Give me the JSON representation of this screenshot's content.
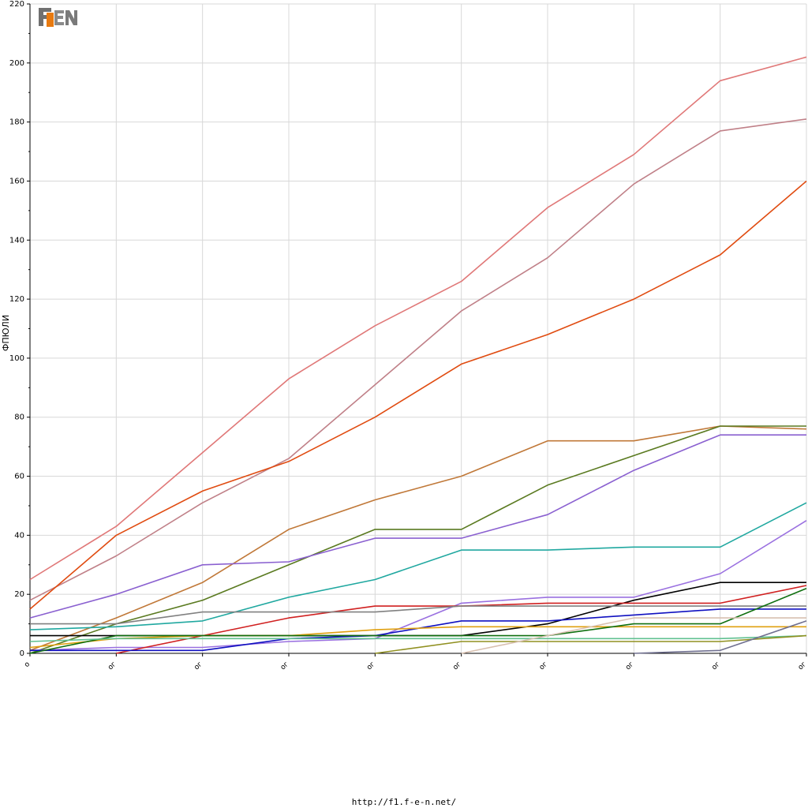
{
  "chart_data": {
    "type": "line",
    "ylabel": "ФПЮЛИ",
    "ylim": [
      0,
      220
    ],
    "yticks": [
      0,
      20,
      40,
      60,
      80,
      100,
      120,
      140,
      160,
      180,
      200,
      220
    ],
    "x": [
      0,
      1,
      2,
      3,
      4,
      5,
      6,
      7,
      8,
      9
    ],
    "xtick_labels": [
      "о",
      "ог",
      "ог",
      "ог",
      "ог",
      "ог",
      "ог",
      "ог",
      "ог",
      "ог"
    ],
    "grid": true,
    "series": [
      {
        "color": "#e07878",
        "values": [
          25,
          43,
          68,
          93,
          111,
          126,
          151,
          169,
          194,
          202
        ]
      },
      {
        "color": "#c08088",
        "values": [
          18,
          33,
          51,
          66,
          91,
          116,
          134,
          159,
          177,
          181
        ]
      },
      {
        "color": "#e04b10",
        "values": [
          15,
          40,
          55,
          65,
          80,
          98,
          108,
          120,
          135,
          160
        ]
      },
      {
        "color": "#c07838",
        "values": [
          1,
          12,
          24,
          42,
          52,
          60,
          72,
          72,
          77,
          76
        ]
      },
      {
        "color": "#5a7a20",
        "values": [
          0,
          10,
          18,
          30,
          42,
          42,
          57,
          67,
          77,
          77
        ]
      },
      {
        "color": "#8a60d0",
        "values": [
          12,
          20,
          30,
          31,
          39,
          39,
          47,
          62,
          74,
          74
        ]
      },
      {
        "color": "#20a8a0",
        "values": [
          8,
          9,
          11,
          19,
          25,
          35,
          35,
          36,
          36,
          51
        ]
      },
      {
        "color": "#9a70e0",
        "values": [
          1,
          2,
          2,
          4,
          5,
          17,
          19,
          19,
          27,
          45
        ]
      },
      {
        "color": "#000000",
        "values": [
          6,
          6,
          6,
          6,
          6,
          6,
          10,
          18,
          24,
          24
        ]
      },
      {
        "color": "#d02020",
        "values": [
          null,
          0,
          6,
          12,
          16,
          16,
          17,
          17,
          17,
          23
        ]
      },
      {
        "color": "#808080",
        "values": [
          10,
          10,
          14,
          14,
          14,
          16,
          16,
          16,
          16,
          16
        ]
      },
      {
        "color": "#1010c0",
        "values": [
          1,
          1,
          1,
          5,
          6,
          11,
          11,
          13,
          15,
          15
        ]
      },
      {
        "color": "#e0a010",
        "values": [
          2,
          5,
          6,
          6,
          8,
          9,
          9,
          9,
          9,
          9
        ]
      },
      {
        "color": "#107010",
        "values": [
          0,
          6,
          6,
          6,
          6,
          6,
          6,
          10,
          10,
          22
        ]
      },
      {
        "color": "#60c090",
        "values": [
          4,
          5,
          5,
          5,
          5,
          5,
          5,
          5,
          5,
          6
        ]
      },
      {
        "color": "#909020",
        "values": [
          null,
          null,
          null,
          null,
          0,
          4,
          4,
          4,
          4,
          6
        ]
      },
      {
        "color": "#d8c0b0",
        "values": [
          null,
          null,
          null,
          null,
          null,
          0,
          6,
          12,
          12,
          12
        ]
      },
      {
        "color": "#707090",
        "values": [
          null,
          null,
          null,
          null,
          null,
          null,
          null,
          0,
          1,
          11
        ]
      }
    ]
  },
  "footer": {
    "url": "http://f1.f-e-n.net/"
  }
}
